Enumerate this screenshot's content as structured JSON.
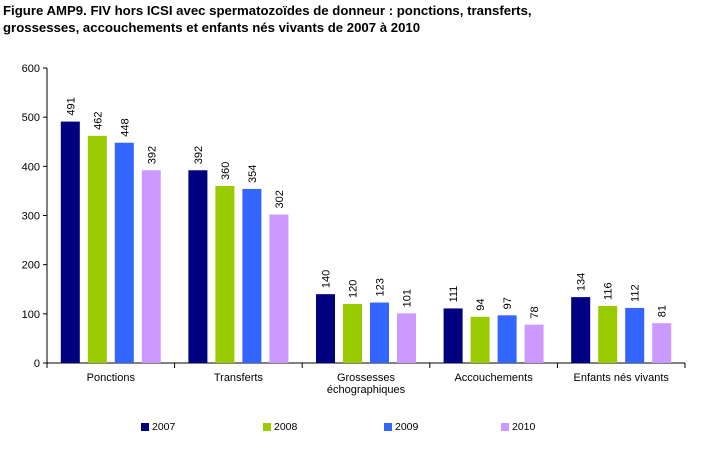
{
  "title_lines": [
    "Figure AMP9. FIV hors ICSI avec spermatozoïdes de donneur : ponctions, transferts,",
    "grossesses, accouchements et enfants nés vivants de  2007 à 2010"
  ],
  "chart_data": {
    "type": "bar",
    "title": "Figure AMP9. FIV hors ICSI avec spermatozoïdes de donneur : ponctions, transferts, grossesses, accouchements et enfants nés vivants de  2007 à 2010",
    "categories": [
      [
        "Ponctions"
      ],
      [
        "Transferts"
      ],
      [
        "Grossesses",
        "échographiques"
      ],
      [
        "Accouchements"
      ],
      [
        "Enfants nés vivants"
      ]
    ],
    "series": [
      {
        "name": "2007",
        "color": "#000080",
        "values": [
          491,
          392,
          140,
          111,
          134
        ]
      },
      {
        "name": "2008",
        "color": "#99cc00",
        "values": [
          462,
          360,
          120,
          94,
          116
        ]
      },
      {
        "name": "2009",
        "color": "#3366ff",
        "values": [
          448,
          354,
          123,
          97,
          112
        ]
      },
      {
        "name": "2010",
        "color": "#cc99ff",
        "values": [
          392,
          302,
          101,
          78,
          81
        ]
      }
    ],
    "yticks": [
      0,
      100,
      200,
      300,
      400,
      500,
      600
    ],
    "ylim": [
      0,
      600
    ],
    "xlabel": "",
    "ylabel": "",
    "grid": false,
    "legend_position": "bottom",
    "data_labels": true
  }
}
